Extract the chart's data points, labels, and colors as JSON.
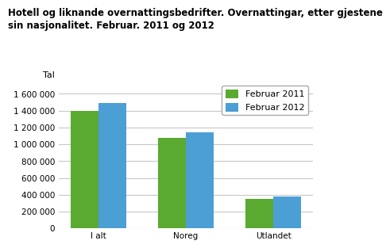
{
  "title": "Hotell og liknande overnattingsbedrifter. Overnattingar, etter gjestene\nsin nasjonalitet. Februar. 2011 og 2012",
  "ylabel": "Tal",
  "categories": [
    "I alt",
    "Noreg",
    "Utlandet"
  ],
  "series": [
    {
      "label": "Februar 2011",
      "values": [
        1400000,
        1075000,
        350000
      ],
      "color": "#5aaa32"
    },
    {
      "label": "Februar 2012",
      "values": [
        1490000,
        1145000,
        375000
      ],
      "color": "#4b9fd5"
    }
  ],
  "ylim": [
    0,
    1750000
  ],
  "yticks": [
    0,
    200000,
    400000,
    600000,
    800000,
    1000000,
    1200000,
    1400000,
    1600000
  ],
  "bar_width": 0.32,
  "background_color": "#ffffff",
  "plot_bg_color": "#ffffff",
  "grid_color": "#c8c8c8",
  "title_fontsize": 8.5,
  "axis_fontsize": 8,
  "tick_fontsize": 7.5,
  "legend_fontsize": 8
}
